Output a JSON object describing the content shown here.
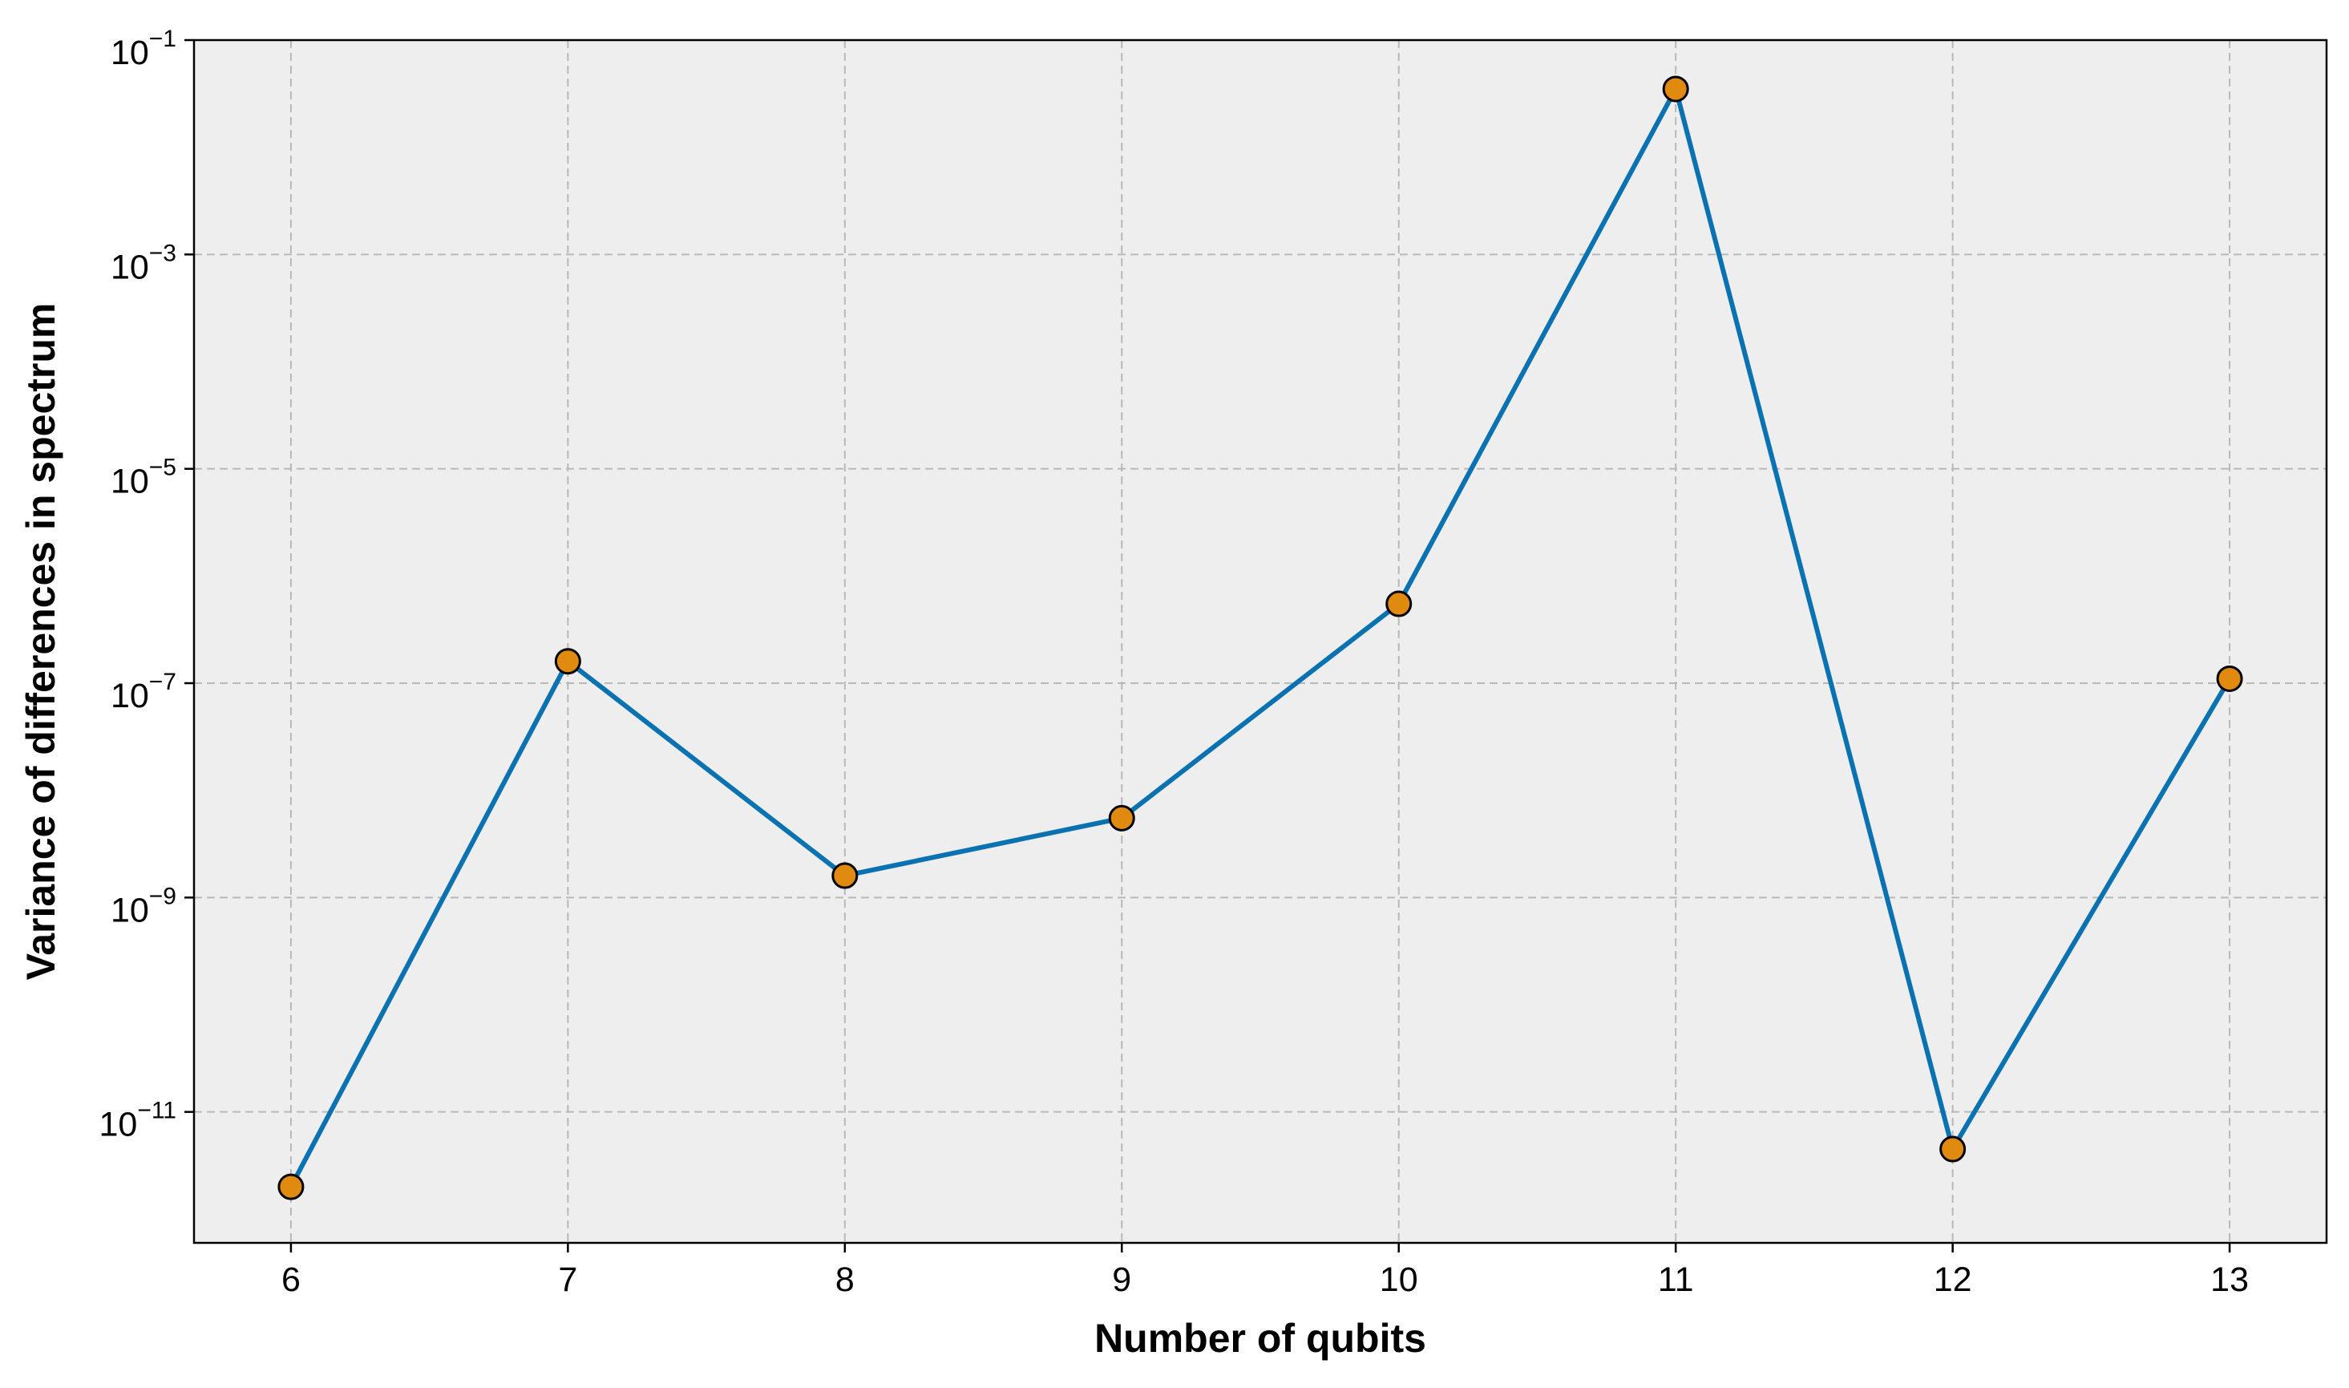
{
  "chart_data": {
    "type": "line",
    "title": "",
    "xlabel": "Number of qubits",
    "ylabel": "Variance of differences in spectrum",
    "x": [
      6,
      7,
      8,
      9,
      10,
      11,
      12,
      13
    ],
    "series": [
      {
        "values": [
          2e-12,
          1.6e-07,
          1.6e-09,
          5.5e-09,
          5.5e-07,
          0.035,
          4.5e-12,
          1.1e-07
        ]
      }
    ],
    "x_ticks": [
      "6",
      "7",
      "8",
      "9",
      "10",
      "11",
      "12",
      "13"
    ],
    "y_ticks": [
      {
        "exponent": -1,
        "base": "10",
        "sup": "−1"
      },
      {
        "exponent": -3,
        "base": "10",
        "sup": "−3"
      },
      {
        "exponent": -5,
        "base": "10",
        "sup": "−5"
      },
      {
        "exponent": -7,
        "base": "10",
        "sup": "−7"
      },
      {
        "exponent": -9,
        "base": "10",
        "sup": "−9"
      },
      {
        "exponent": -11,
        "base": "10",
        "sup": "−11"
      }
    ],
    "y_scale": "log",
    "xlim": [
      5.65,
      13.35
    ],
    "ylim": [
      6e-13,
      0.1
    ],
    "grid": true,
    "colors": {
      "line": "#0a72b0",
      "marker_fill": "#e08b0f",
      "marker_edge": "#000000",
      "plot_background": "#eeeeee",
      "grid": "#b8b8b8"
    }
  }
}
